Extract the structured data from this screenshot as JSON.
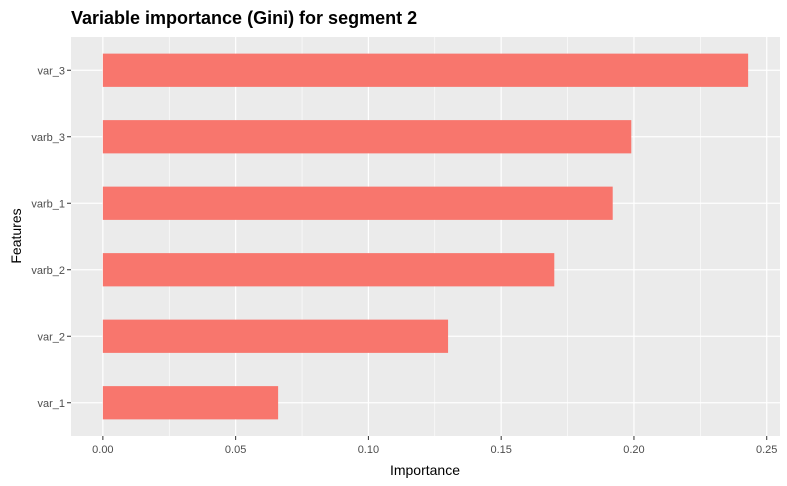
{
  "chart_data": {
    "type": "bar",
    "orientation": "horizontal",
    "title": "Variable importance (Gini) for segment 2",
    "xlabel": "Importance",
    "ylabel": "Features",
    "categories": [
      "var_1",
      "var_2",
      "varb_2",
      "varb_1",
      "varb_3",
      "var_3"
    ],
    "values": [
      0.066,
      0.13,
      0.17,
      0.192,
      0.199,
      0.243
    ],
    "xlim": [
      -0.012,
      0.255
    ],
    "xticks": [
      0.0,
      0.05,
      0.1,
      0.15,
      0.2,
      0.25
    ],
    "xtick_labels": [
      "0.00",
      "0.05",
      "0.10",
      "0.15",
      "0.20",
      "0.25"
    ],
    "grid": true,
    "legend": "none",
    "colors": {
      "bar": "#F8766D",
      "panel": "#EBEBEB",
      "grid": "#FFFFFF"
    }
  }
}
